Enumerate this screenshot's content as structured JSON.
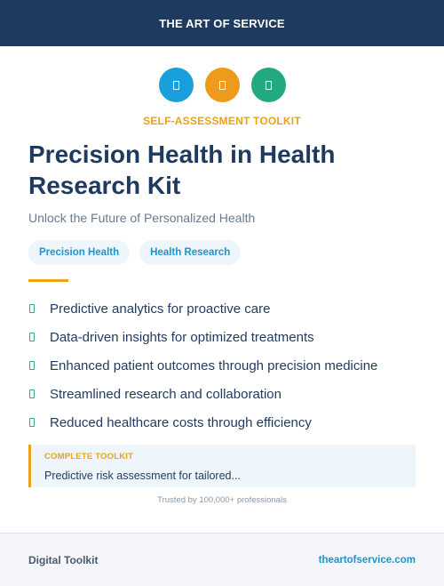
{
  "header": {
    "brand": "THE ART OF SERVICE"
  },
  "icons": [
    {
      "name": "document-icon",
      "color": "#1a9fdc"
    },
    {
      "name": "document-icon",
      "color": "#ee9a1c"
    },
    {
      "name": "document-icon",
      "color": "#22a97f"
    }
  ],
  "kicker": "SELF-ASSESSMENT TOOLKIT",
  "title": "Precision Health in Health Research Kit",
  "subtitle": "Unlock the Future of Personalized Health",
  "tags": [
    "Precision Health",
    "Health Research"
  ],
  "features": [
    "Predictive analytics for proactive care",
    "Data-driven insights for optimized treatments",
    "Enhanced patient outcomes through precision medicine",
    "Streamlined research and collaboration",
    "Reduced healthcare costs through efficiency"
  ],
  "callout": {
    "label": "COMPLETE TOOLKIT",
    "text": "Predictive risk assessment for tailored..."
  },
  "trusted": "Trusted by 100,000+ professionals",
  "footer": {
    "left": "Digital Toolkit",
    "right": "theartofservice.com"
  },
  "colors": {
    "navy": "#1f3a5f",
    "accent": "#e8a21d",
    "link": "#1f93cf",
    "check": "#2aae84"
  }
}
